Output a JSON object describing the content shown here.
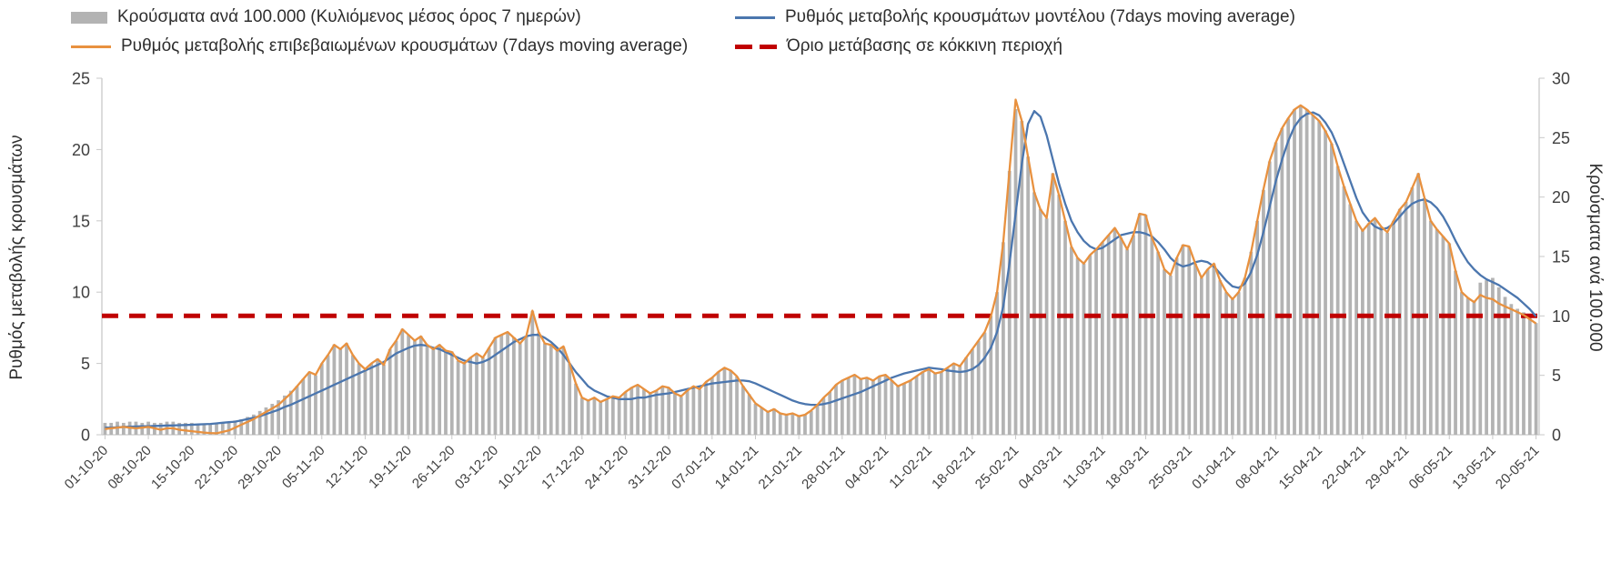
{
  "legend": {
    "items": [
      {
        "label": "Κρούσματα ανά 100.000 (Κυλιόμενος μέσος όρος 7 ημερών)",
        "color": "#b3b3b3",
        "type": "bar"
      },
      {
        "label": "Ρυθμός μεταβολής κρουσμάτων μοντέλου (7days moving average)",
        "color": "#4b76ae",
        "type": "line"
      },
      {
        "label": "Ρυθμός μεταβολής επιβεβαιωμένων κρουσμάτων (7days moving average)",
        "color": "#e8913f",
        "type": "line"
      },
      {
        "label": "Όριο μετάβασης σε κόκκινη περιοχή",
        "color": "#c00000",
        "type": "dashed-line"
      }
    ]
  },
  "axes": {
    "left_title": "Ρυθμός μεταβολής κρουσμάτων",
    "right_title": "Κρούσματα ανά 100.000"
  },
  "chart_data": {
    "type": "combo",
    "x_unit": "day",
    "x_start": "01-10-20",
    "x_end": "20-05-21",
    "x_tick_interval_days": 7,
    "x_tick_labels": [
      "01-10-20",
      "08-10-20",
      "15-10-20",
      "22-10-20",
      "29-10-20",
      "05-11-20",
      "12-11-20",
      "19-11-20",
      "26-11-20",
      "03-12-20",
      "10-12-20",
      "17-12-20",
      "24-12-20",
      "31-12-20",
      "07-01-21",
      "14-01-21",
      "21-01-21",
      "28-01-21",
      "04-02-21",
      "11-02-21",
      "18-02-21",
      "25-02-21",
      "04-03-21",
      "11-03-21",
      "18-03-21",
      "25-03-21",
      "01-04-21",
      "08-04-21",
      "15-04-21",
      "22-04-21",
      "29-04-21",
      "06-05-21",
      "13-05-21",
      "20-05-21"
    ],
    "left_axis": {
      "title": "Ρυθμός μεταβολής κρουσμάτων",
      "min": 0,
      "max": 25,
      "ticks": [
        0,
        5,
        10,
        15,
        20,
        25
      ]
    },
    "right_axis": {
      "title": "Κρούσματα ανά 100.000",
      "min": 0,
      "max": 30,
      "ticks": [
        0,
        5,
        10,
        15,
        20,
        25,
        30
      ]
    },
    "threshold": {
      "label": "Όριο μετάβασης σε κόκκινη περιοχή",
      "value_right": 10,
      "color": "#c00000",
      "style": "dashed"
    },
    "series": [
      {
        "name": "Κρούσματα ανά 100.000 (Κυλιόμενος μέσος όρος 7 ημερών)",
        "type": "bar",
        "axis": "right",
        "color": "#b3b3b3",
        "values": [
          1.0,
          1.0,
          1.1,
          1.0,
          1.1,
          1.1,
          1.0,
          1.1,
          1.0,
          1.0,
          1.1,
          1.1,
          1.0,
          1.0,
          1.0,
          0.9,
          0.9,
          0.9,
          1.0,
          1.0,
          1.1,
          1.2,
          1.3,
          1.5,
          1.7,
          2.0,
          2.3,
          2.6,
          2.9,
          3.3,
          3.7,
          4.1,
          4.7,
          5.3,
          5.0,
          6.0,
          6.7,
          7.6,
          7.2,
          7.7,
          6.7,
          6.0,
          5.5,
          6.0,
          6.4,
          5.9,
          7.2,
          7.9,
          8.9,
          8.4,
          7.9,
          8.3,
          7.6,
          7.2,
          7.6,
          7.1,
          7.0,
          6.2,
          6.0,
          6.5,
          6.8,
          6.5,
          7.3,
          8.2,
          8.4,
          8.6,
          8.2,
          7.7,
          8.3,
          10.4,
          8.6,
          7.7,
          7.6,
          7.1,
          7.4,
          6.0,
          4.3,
          3.1,
          2.9,
          3.1,
          2.8,
          3.0,
          3.2,
          3.1,
          3.6,
          4.0,
          4.2,
          3.8,
          3.5,
          3.7,
          4.1,
          4.0,
          3.5,
          3.2,
          3.7,
          4.1,
          3.8,
          4.4,
          4.8,
          5.3,
          5.6,
          5.4,
          4.9,
          4.1,
          3.4,
          2.6,
          2.3,
          1.9,
          2.2,
          1.8,
          1.7,
          1.8,
          1.6,
          1.7,
          2.0,
          2.5,
          3.1,
          3.6,
          4.2,
          4.6,
          4.8,
          5.0,
          4.7,
          4.8,
          4.6,
          4.9,
          5.0,
          4.6,
          4.1,
          4.3,
          4.6,
          4.9,
          5.3,
          5.5,
          5.2,
          5.3,
          5.6,
          6.0,
          5.8,
          6.5,
          7.2,
          7.9,
          8.6,
          10.0,
          12.0,
          16.2,
          22.2,
          27.4,
          26.4,
          23.4,
          20.4,
          19.0,
          18.2,
          22.0,
          20.2,
          18.0,
          15.8,
          14.9,
          14.4,
          15.1,
          15.6,
          16.2,
          16.8,
          17.4,
          16.6,
          15.6,
          16.8,
          18.6,
          18.5,
          16.6,
          15.4,
          13.9,
          13.4,
          14.9,
          16.0,
          15.8,
          14.4,
          13.2,
          13.9,
          14.4,
          13.0,
          12.0,
          11.4,
          12.0,
          13.2,
          15.4,
          18.0,
          20.6,
          23.0,
          24.6,
          25.8,
          26.6,
          27.4,
          27.7,
          27.4,
          26.9,
          26.4,
          25.6,
          24.5,
          22.6,
          20.9,
          19.4,
          18.0,
          17.2,
          17.8,
          18.2,
          17.5,
          17.0,
          18.0,
          19.0,
          19.6,
          20.8,
          22.0,
          19.9,
          18.0,
          17.3,
          16.7,
          16.1,
          13.8,
          12.0,
          11.5,
          11.2,
          12.8,
          13.0,
          13.2,
          12.4,
          11.6,
          11.0,
          10.6,
          10.3,
          9.9,
          9.4
        ]
      },
      {
        "name": "Ρυθμός μεταβολής κρουσμάτων μοντέλου (7days moving average)",
        "type": "line",
        "axis": "left",
        "color": "#4b76ae",
        "values": [
          0.5,
          0.5,
          0.52,
          0.55,
          0.57,
          0.58,
          0.6,
          0.6,
          0.62,
          0.63,
          0.65,
          0.65,
          0.67,
          0.68,
          0.7,
          0.72,
          0.74,
          0.76,
          0.8,
          0.84,
          0.88,
          0.92,
          1.0,
          1.1,
          1.2,
          1.3,
          1.45,
          1.6,
          1.75,
          1.95,
          2.1,
          2.3,
          2.5,
          2.7,
          2.9,
          3.1,
          3.3,
          3.5,
          3.7,
          3.9,
          4.1,
          4.3,
          4.5,
          4.7,
          4.9,
          5.1,
          5.4,
          5.7,
          5.9,
          6.1,
          6.25,
          6.3,
          6.25,
          6.1,
          6.0,
          5.8,
          5.6,
          5.4,
          5.2,
          5.1,
          5.0,
          5.1,
          5.3,
          5.6,
          5.9,
          6.2,
          6.5,
          6.7,
          6.9,
          7.0,
          7.0,
          6.8,
          6.5,
          6.1,
          5.6,
          5.0,
          4.4,
          3.9,
          3.4,
          3.1,
          2.9,
          2.7,
          2.6,
          2.5,
          2.5,
          2.5,
          2.6,
          2.6,
          2.7,
          2.8,
          2.85,
          2.9,
          3.0,
          3.1,
          3.2,
          3.3,
          3.4,
          3.5,
          3.6,
          3.65,
          3.7,
          3.75,
          3.8,
          3.8,
          3.75,
          3.6,
          3.4,
          3.2,
          3.0,
          2.8,
          2.6,
          2.4,
          2.25,
          2.15,
          2.1,
          2.1,
          2.15,
          2.25,
          2.4,
          2.55,
          2.7,
          2.85,
          3.0,
          3.2,
          3.4,
          3.6,
          3.8,
          4.0,
          4.15,
          4.3,
          4.4,
          4.5,
          4.6,
          4.7,
          4.65,
          4.6,
          4.5,
          4.45,
          4.4,
          4.45,
          4.6,
          4.9,
          5.4,
          6.1,
          7.2,
          9.0,
          12.0,
          15.5,
          19.0,
          21.8,
          22.7,
          22.3,
          21.0,
          19.3,
          17.6,
          16.2,
          15.0,
          14.2,
          13.6,
          13.2,
          13.0,
          13.1,
          13.4,
          13.7,
          14.0,
          14.1,
          14.2,
          14.2,
          14.1,
          13.9,
          13.5,
          13.0,
          12.4,
          12.0,
          11.8,
          11.9,
          12.1,
          12.2,
          12.1,
          11.8,
          11.3,
          10.8,
          10.4,
          10.3,
          10.6,
          11.4,
          12.6,
          14.2,
          16.0,
          17.8,
          19.3,
          20.6,
          21.6,
          22.2,
          22.5,
          22.6,
          22.4,
          21.9,
          21.2,
          20.2,
          19.0,
          17.8,
          16.6,
          15.6,
          15.0,
          14.6,
          14.4,
          14.5,
          14.8,
          15.3,
          15.8,
          16.2,
          16.4,
          16.5,
          16.3,
          15.9,
          15.3,
          14.5,
          13.6,
          12.8,
          12.1,
          11.6,
          11.2,
          10.9,
          10.7,
          10.5,
          10.2,
          9.9,
          9.6,
          9.2,
          8.8,
          8.3
        ]
      },
      {
        "name": "Ρυθμός μεταβολής επιβεβαιωμένων κρουσμάτων (7days moving average)",
        "type": "line",
        "axis": "left",
        "color": "#e8913f",
        "values": [
          0.4,
          0.45,
          0.5,
          0.55,
          0.5,
          0.45,
          0.5,
          0.55,
          0.45,
          0.35,
          0.45,
          0.45,
          0.35,
          0.3,
          0.25,
          0.2,
          0.15,
          0.12,
          0.1,
          0.2,
          0.3,
          0.5,
          0.7,
          0.9,
          1.1,
          1.35,
          1.6,
          1.85,
          2.1,
          2.5,
          2.9,
          3.4,
          3.9,
          4.4,
          4.2,
          5.0,
          5.6,
          6.3,
          6.0,
          6.4,
          5.6,
          5.0,
          4.6,
          5.0,
          5.3,
          4.9,
          6.0,
          6.6,
          7.4,
          7.0,
          6.6,
          6.9,
          6.3,
          6.0,
          6.3,
          5.9,
          5.8,
          5.2,
          5.0,
          5.4,
          5.7,
          5.4,
          6.1,
          6.8,
          7.0,
          7.2,
          6.8,
          6.4,
          6.9,
          8.7,
          7.2,
          6.4,
          6.3,
          5.9,
          6.2,
          5.0,
          3.6,
          2.6,
          2.4,
          2.6,
          2.3,
          2.5,
          2.7,
          2.6,
          3.0,
          3.3,
          3.5,
          3.2,
          2.9,
          3.1,
          3.4,
          3.3,
          2.9,
          2.7,
          3.1,
          3.4,
          3.2,
          3.7,
          4.0,
          4.4,
          4.7,
          4.5,
          4.1,
          3.4,
          2.8,
          2.2,
          1.9,
          1.6,
          1.8,
          1.5,
          1.4,
          1.5,
          1.3,
          1.4,
          1.7,
          2.1,
          2.6,
          3.0,
          3.5,
          3.8,
          4.0,
          4.2,
          3.9,
          4.0,
          3.8,
          4.1,
          4.2,
          3.8,
          3.4,
          3.6,
          3.8,
          4.1,
          4.4,
          4.6,
          4.3,
          4.4,
          4.7,
          5.0,
          4.8,
          5.4,
          6.0,
          6.6,
          7.2,
          8.3,
          10.0,
          13.5,
          18.5,
          23.5,
          22.0,
          19.5,
          17.0,
          15.8,
          15.2,
          18.3,
          16.8,
          15.0,
          13.2,
          12.4,
          12.0,
          12.6,
          13.0,
          13.5,
          14.0,
          14.5,
          13.8,
          13.0,
          14.0,
          15.5,
          15.4,
          13.8,
          12.8,
          11.6,
          11.2,
          12.4,
          13.3,
          13.2,
          12.0,
          11.0,
          11.6,
          12.0,
          10.8,
          10.0,
          9.5,
          10.0,
          11.0,
          12.8,
          15.0,
          17.2,
          19.2,
          20.5,
          21.5,
          22.2,
          22.8,
          23.1,
          22.8,
          22.4,
          22.0,
          21.3,
          20.4,
          18.8,
          17.4,
          16.2,
          15.0,
          14.3,
          14.8,
          15.2,
          14.6,
          14.2,
          15.0,
          15.8,
          16.3,
          17.3,
          18.3,
          16.6,
          15.0,
          14.4,
          13.9,
          13.4,
          11.5,
          10.0,
          9.6,
          9.3,
          9.8,
          9.6,
          9.5,
          9.2,
          9.0,
          8.8,
          8.6,
          8.4,
          8.1,
          7.8
        ]
      }
    ]
  }
}
